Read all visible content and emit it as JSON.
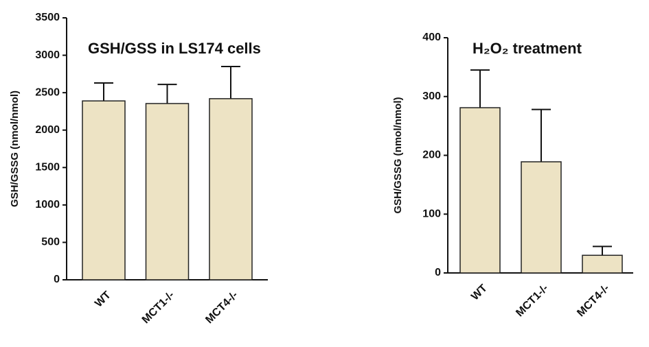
{
  "chart_data": [
    {
      "type": "bar",
      "title": "GSH/GSS in LS174 cells",
      "y_label": "GSH/GSSG (nmol/nmol)",
      "categories": [
        "WT",
        "MCT1-/-",
        "MCT4-/-"
      ],
      "values": [
        2390,
        2355,
        2420
      ],
      "errors": [
        240,
        255,
        430
      ],
      "color": "#ede3c4",
      "ylim": [
        0,
        3500
      ],
      "yticks": [
        0,
        500,
        1000,
        1500,
        2000,
        2500,
        3000,
        3500
      ]
    },
    {
      "type": "bar",
      "title": "H₂O₂ treatment",
      "y_label": "GSH/GSSG (nmol/nmol)",
      "categories": [
        "WT",
        "MCT1-/-",
        "MCT4-/-"
      ],
      "values": [
        281,
        189,
        30
      ],
      "errors": [
        64,
        89,
        15
      ],
      "color": "#ede3c4",
      "ylim": [
        0,
        400
      ],
      "yticks": [
        0,
        100,
        200,
        300,
        400
      ]
    }
  ]
}
